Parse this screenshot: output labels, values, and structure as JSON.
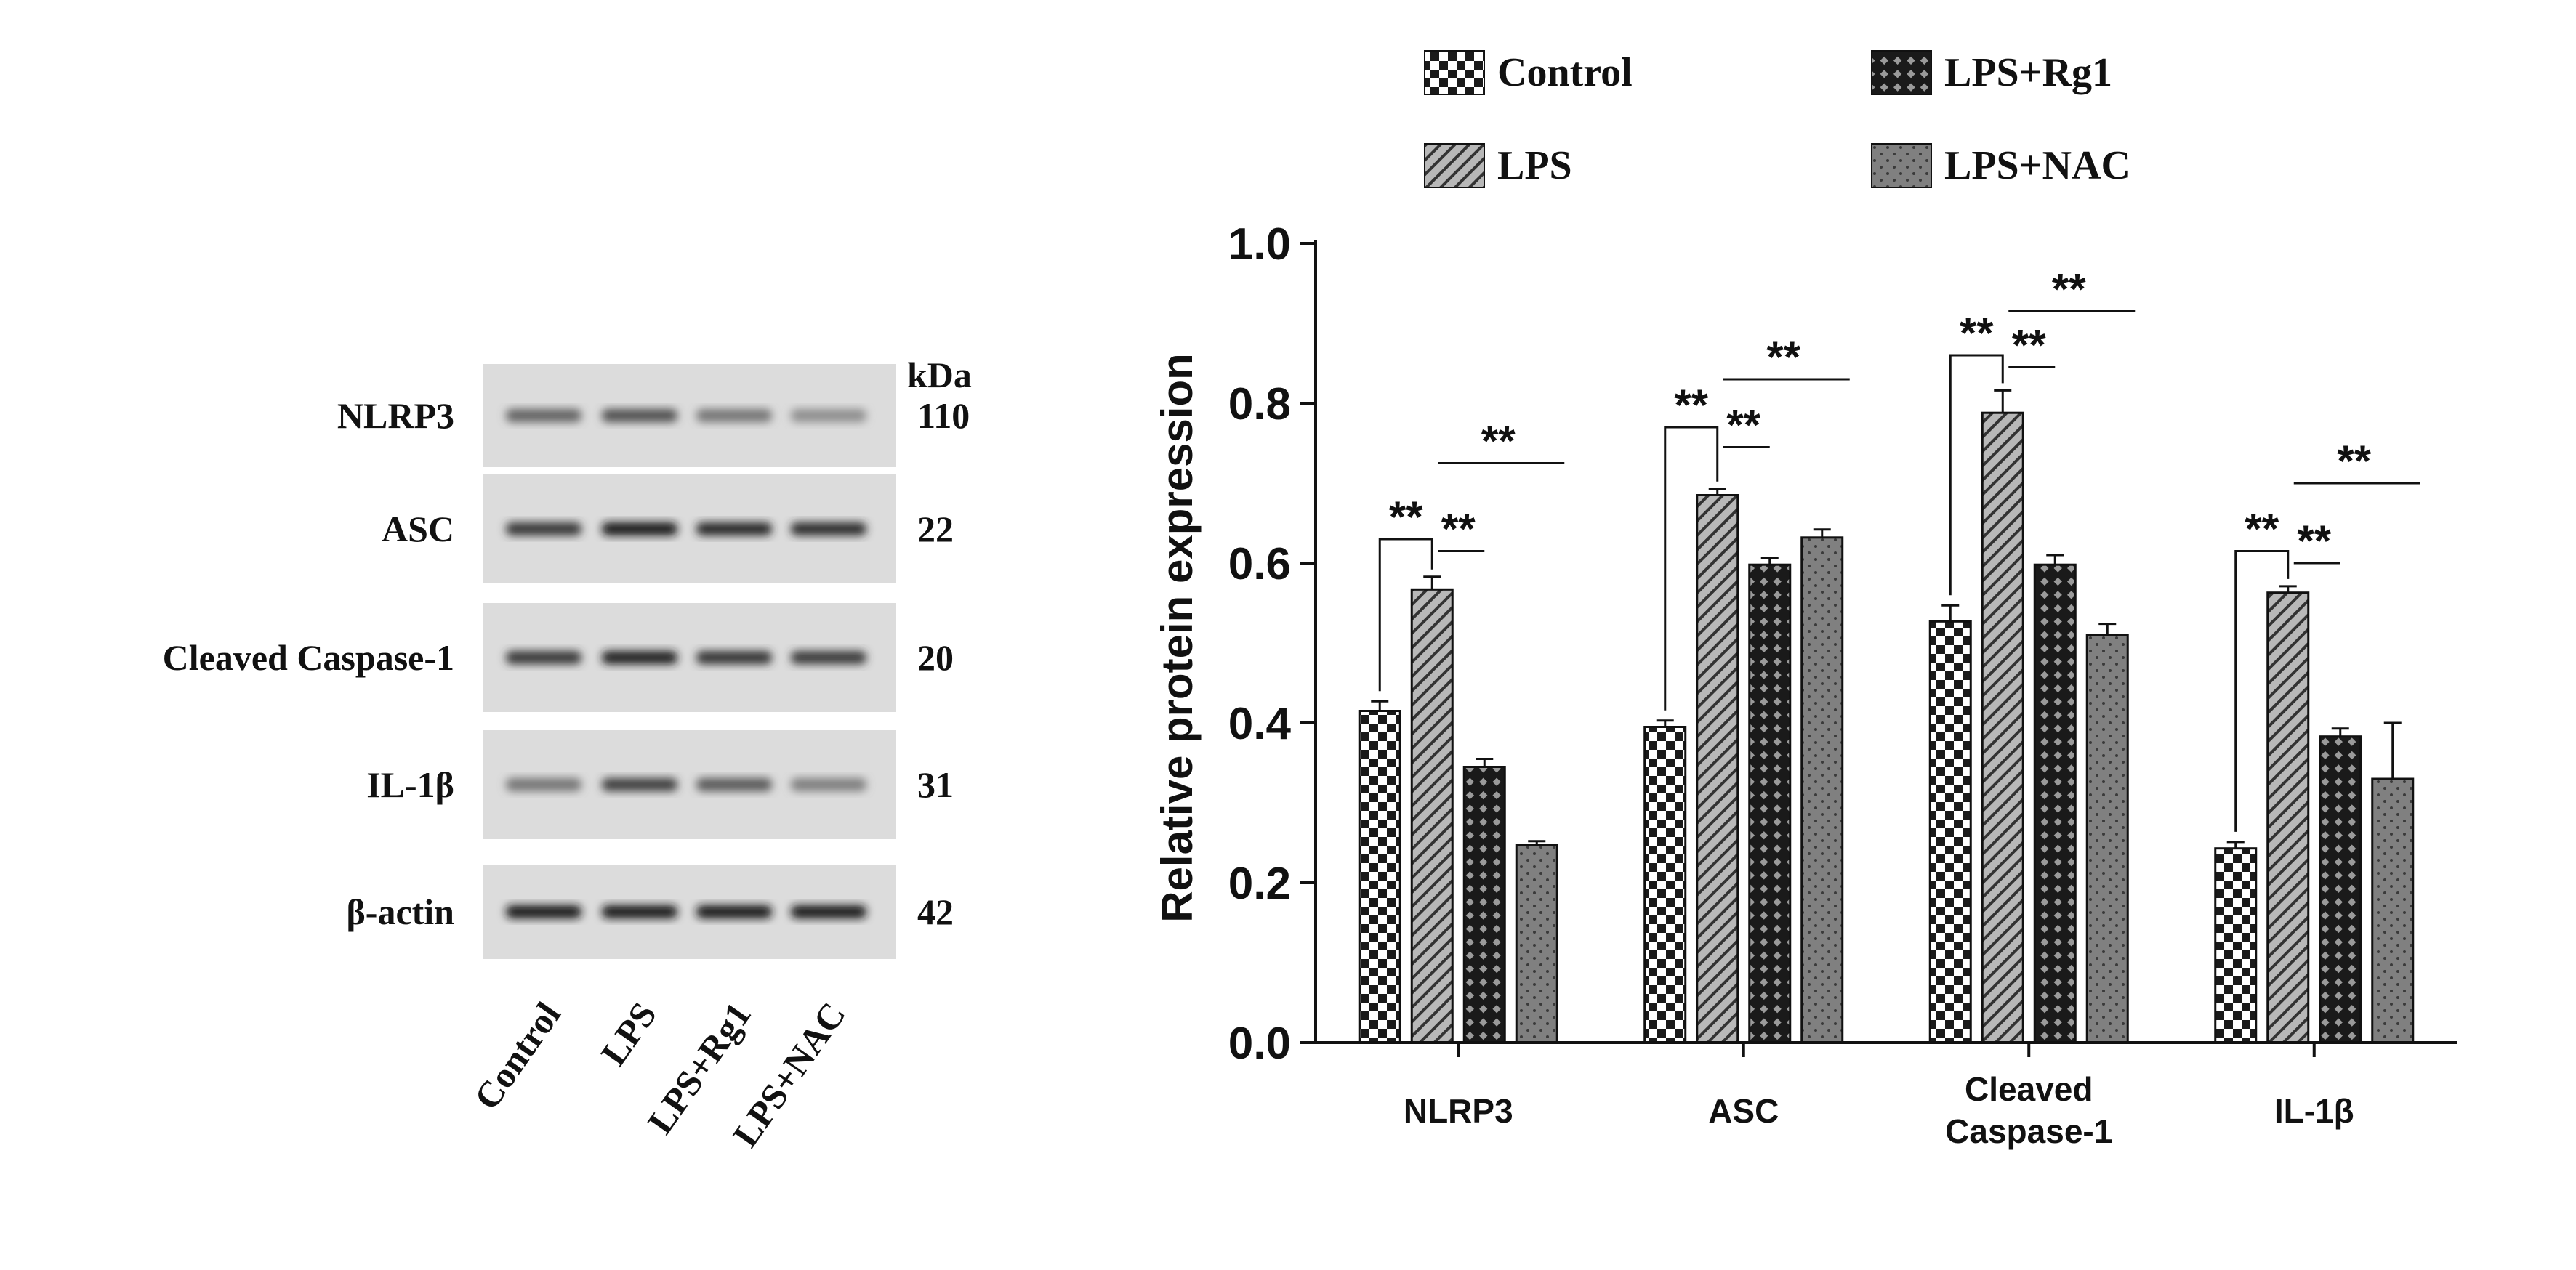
{
  "blot": {
    "unit_label": "kDa",
    "rows": [
      {
        "label": "NLRP3",
        "kda": "110",
        "intensities": [
          0.55,
          0.65,
          0.45,
          0.32
        ]
      },
      {
        "label": "ASC",
        "kda": "22",
        "intensities": [
          0.8,
          0.95,
          0.88,
          0.86
        ]
      },
      {
        "label": "Cleaved Caspase-1",
        "kda": "20",
        "intensities": [
          0.8,
          0.92,
          0.82,
          0.78
        ]
      },
      {
        "label": "IL-1β",
        "kda": "31",
        "intensities": [
          0.45,
          0.75,
          0.6,
          0.4
        ]
      },
      {
        "label": "β-actin",
        "kda": "42",
        "intensities": [
          0.98,
          0.96,
          0.96,
          0.96
        ]
      }
    ],
    "lanes": [
      "Control",
      "LPS",
      "LPS+Rg1",
      "LPS+NAC"
    ]
  },
  "chart_data": {
    "type": "bar",
    "categories": [
      "NLRP3",
      "ASC",
      "Cleaved\nCaspase-1",
      "IL-1β"
    ],
    "ylabel": "Relative protein expression",
    "ylim": [
      0,
      1.0
    ],
    "yticks": [
      "0.0",
      "0.2",
      "0.4",
      "0.6",
      "0.8",
      "1.0"
    ],
    "legend_position": "top",
    "series": [
      {
        "name": "Control",
        "pattern": "checker",
        "values": [
          0.415,
          0.395,
          0.527,
          0.243
        ],
        "errors": [
          0.012,
          0.008,
          0.02,
          0.008
        ]
      },
      {
        "name": "LPS",
        "pattern": "diagonal",
        "values": [
          0.567,
          0.685,
          0.788,
          0.563
        ],
        "errors": [
          0.016,
          0.008,
          0.028,
          0.008
        ]
      },
      {
        "name": "LPS+Rg1",
        "pattern": "crosshatch",
        "values": [
          0.345,
          0.598,
          0.598,
          0.383
        ],
        "errors": [
          0.01,
          0.008,
          0.012,
          0.01
        ]
      },
      {
        "name": "LPS+NAC",
        "pattern": "dots",
        "values": [
          0.247,
          0.632,
          0.51,
          0.33
        ],
        "errors": [
          0.005,
          0.01,
          0.014,
          0.07
        ]
      }
    ],
    "significance": [
      {
        "group": 0,
        "from": 0,
        "to": 1,
        "style": "bracket",
        "label": "**",
        "level": 0.63
      },
      {
        "group": 0,
        "from": 1,
        "to": 2,
        "style": "line",
        "label": "**",
        "level": 0.615
      },
      {
        "group": 0,
        "from": 1,
        "to": 3,
        "style": "line",
        "label": "**",
        "level": 0.725
      },
      {
        "group": 1,
        "from": 0,
        "to": 1,
        "style": "bracket",
        "label": "**",
        "level": 0.77
      },
      {
        "group": 1,
        "from": 1,
        "to": 2,
        "style": "line",
        "label": "**",
        "level": 0.745
      },
      {
        "group": 1,
        "from": 1,
        "to": 3,
        "style": "line",
        "label": "**",
        "level": 0.83
      },
      {
        "group": 2,
        "from": 0,
        "to": 1,
        "style": "bracket",
        "label": "**",
        "level": 0.86
      },
      {
        "group": 2,
        "from": 1,
        "to": 2,
        "style": "line",
        "label": "**",
        "level": 0.845
      },
      {
        "group": 2,
        "from": 1,
        "to": 3,
        "style": "line",
        "label": "**",
        "level": 0.915
      },
      {
        "group": 3,
        "from": 0,
        "to": 1,
        "style": "bracket",
        "label": "**",
        "level": 0.615
      },
      {
        "group": 3,
        "from": 1,
        "to": 2,
        "style": "line",
        "label": "**",
        "level": 0.6
      },
      {
        "group": 3,
        "from": 1,
        "to": 3,
        "style": "line",
        "label": "**",
        "level": 0.7
      }
    ]
  }
}
